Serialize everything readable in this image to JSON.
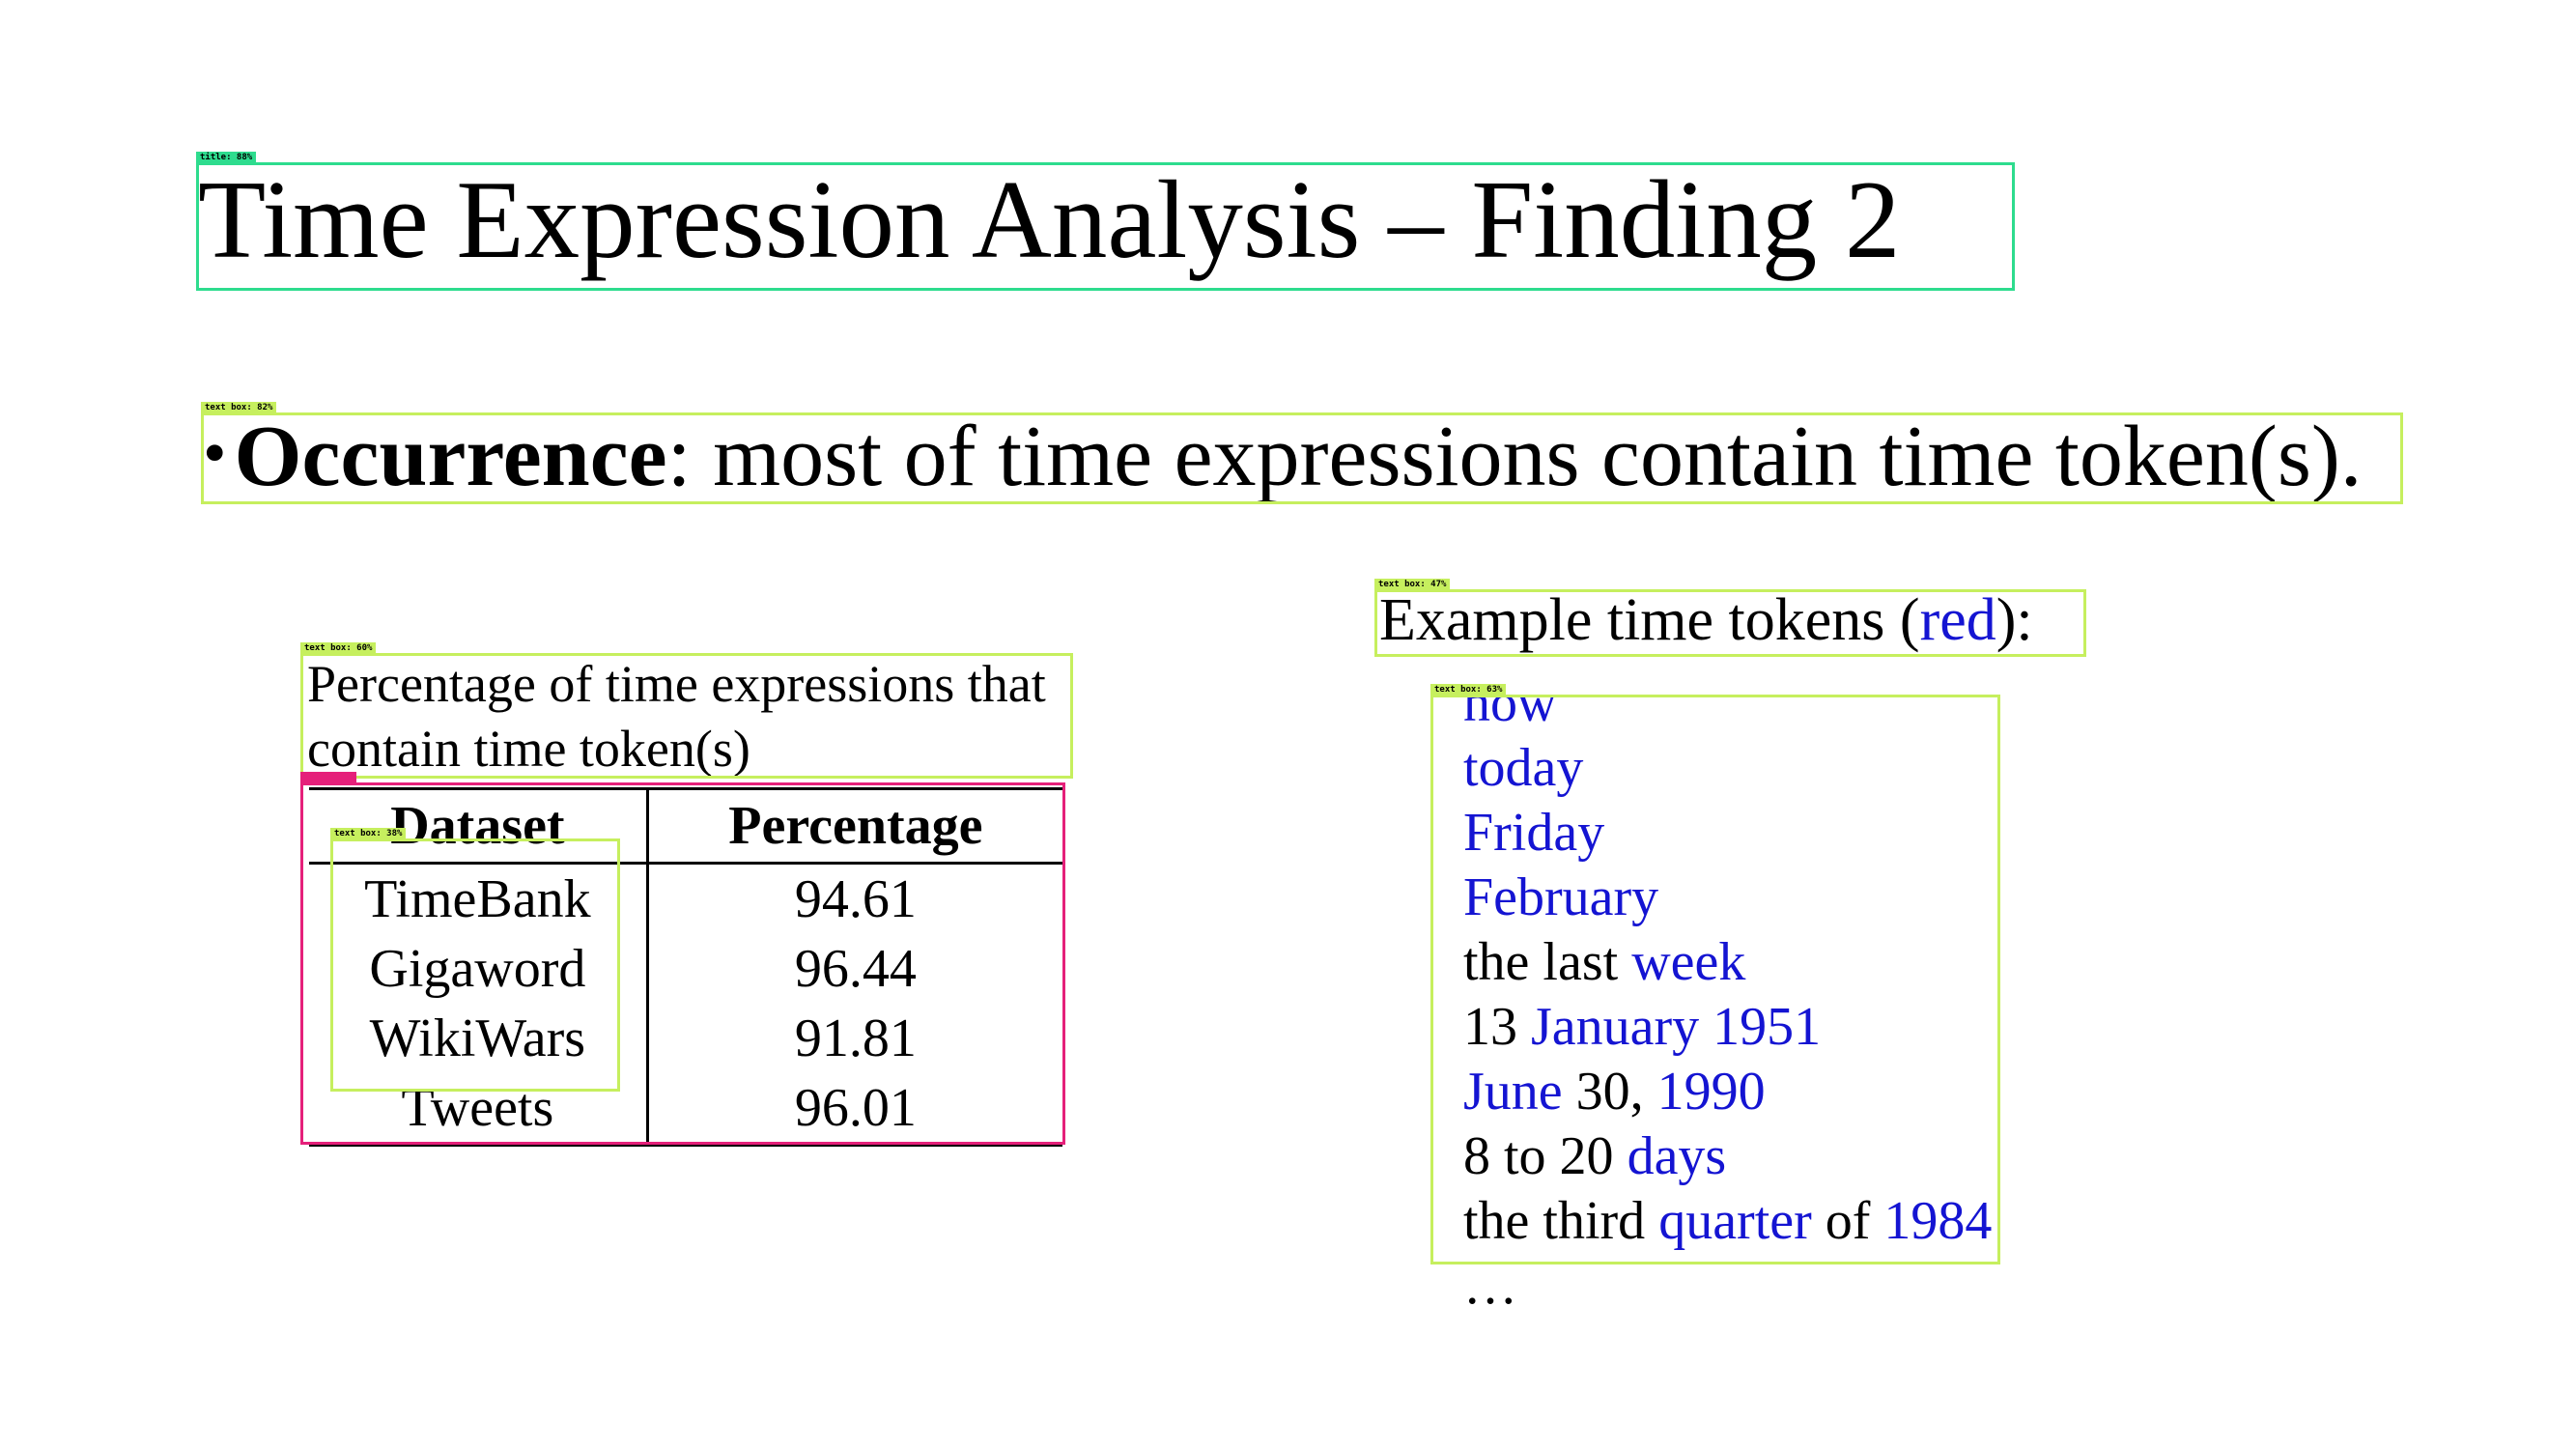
{
  "slide": {
    "title": "Time Expression Analysis – Finding 2",
    "bullet": {
      "symbol": "•",
      "term": "Occurrence",
      "rest": ": most of time expressions contain time token(s)."
    }
  },
  "table_caption": "Percentage of time expressions that contain time token(s)",
  "table": {
    "headers": [
      "Dataset",
      "Percentage"
    ],
    "rows": [
      [
        "TimeBank",
        "94.61"
      ],
      [
        "Gigaword",
        "96.44"
      ],
      [
        "WikiWars",
        "91.81"
      ],
      [
        "Tweets",
        "96.01"
      ]
    ]
  },
  "examples": {
    "heading_before": "Example time tokens (",
    "heading_colored": "red",
    "heading_after": "):",
    "lines": [
      [
        {
          "t": "now",
          "hl": true
        }
      ],
      [
        {
          "t": "today",
          "hl": true
        }
      ],
      [
        {
          "t": "Friday",
          "hl": true
        }
      ],
      [
        {
          "t": "February",
          "hl": true
        }
      ],
      [
        {
          "t": "the last ",
          "hl": false
        },
        {
          "t": "week",
          "hl": true
        }
      ],
      [
        {
          "t": "13 ",
          "hl": false
        },
        {
          "t": "January 1951",
          "hl": true
        }
      ],
      [
        {
          "t": "June",
          "hl": true
        },
        {
          "t": " 30, ",
          "hl": false
        },
        {
          "t": "1990",
          "hl": true
        }
      ],
      [
        {
          "t": "8 to 20 ",
          "hl": false
        },
        {
          "t": "days",
          "hl": true
        }
      ],
      [
        {
          "t": "the third ",
          "hl": false
        },
        {
          "t": "quarter",
          "hl": true
        },
        {
          "t": " of ",
          "hl": false
        },
        {
          "t": "1984",
          "hl": true
        }
      ],
      [
        {
          "t": "…",
          "hl": false
        }
      ]
    ]
  },
  "overlay": {
    "title_tag": "title: 88%",
    "bullet_tag": "text box: 82%",
    "example_head_tag": "text box: 47%",
    "example_list_tag": "text box: 63%",
    "caption_tag": "text box: 60%",
    "dataset_col_tag": "text box: 38%",
    "table_tag": "table: 88%"
  },
  "colors": {
    "highlight": "#1414d2",
    "text_box": "#c6ef5e",
    "title_box": "#2edc8e",
    "table_box": "#e5207a"
  }
}
